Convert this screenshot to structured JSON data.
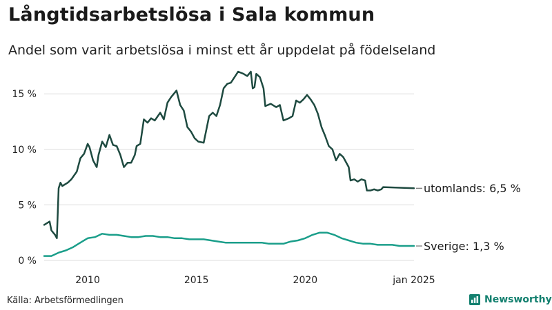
{
  "header": {
    "title": "Långtidsarbetslösa i Sala kommun",
    "subtitle": "Andel som varit arbetslösa i minst ett år uppdelat på födelseland"
  },
  "footer": {
    "source": "Källa: Arbetsförmedlingen",
    "brand": "Newsworthy"
  },
  "colors": {
    "utomlands": "#1e4a40",
    "sverige": "#1a9e8a",
    "grid": "#dcdcdc",
    "brand": "#13806f"
  },
  "icons": {
    "brand": "bar-chart-icon"
  },
  "chart_data": {
    "type": "line",
    "title": "Långtidsarbetslösa i Sala kommun",
    "subtitle": "Andel som varit arbetslösa i minst ett år uppdelat på födelseland",
    "xlabel": "",
    "ylabel": "",
    "x_range": [
      "2008-01",
      "2025-01"
    ],
    "ylim": [
      0,
      17
    ],
    "grid": true,
    "legend": "end-labels",
    "y_ticks": [
      {
        "value": 0,
        "label": "0 %"
      },
      {
        "value": 5,
        "label": "5 %"
      },
      {
        "value": 10,
        "label": "10 %"
      },
      {
        "value": 15,
        "label": "15 %"
      }
    ],
    "x_ticks": [
      {
        "date": "2010-01",
        "label": "2010"
      },
      {
        "date": "2015-01",
        "label": "2015"
      },
      {
        "date": "2020-01",
        "label": "2020"
      },
      {
        "date": "2025-01",
        "label": "jan 2025"
      }
    ],
    "series": [
      {
        "name": "utomlands",
        "end_label": "utomlands: 6,5 %",
        "points": [
          [
            "2008-01",
            3.2
          ],
          [
            "2008-04",
            3.5
          ],
          [
            "2008-05",
            2.7
          ],
          [
            "2008-07",
            2.3
          ],
          [
            "2008-08",
            2.0
          ],
          [
            "2008-09",
            6.5
          ],
          [
            "2008-10",
            7.0
          ],
          [
            "2008-11",
            6.7
          ],
          [
            "2009-02",
            7.0
          ],
          [
            "2009-04",
            7.3
          ],
          [
            "2009-07",
            8.0
          ],
          [
            "2009-09",
            9.2
          ],
          [
            "2009-11",
            9.6
          ],
          [
            "2010-01",
            10.5
          ],
          [
            "2010-02",
            10.2
          ],
          [
            "2010-04",
            9.0
          ],
          [
            "2010-06",
            8.4
          ],
          [
            "2010-07",
            9.5
          ],
          [
            "2010-09",
            10.7
          ],
          [
            "2010-11",
            10.2
          ],
          [
            "2011-01",
            11.3
          ],
          [
            "2011-03",
            10.4
          ],
          [
            "2011-05",
            10.3
          ],
          [
            "2011-07",
            9.5
          ],
          [
            "2011-09",
            8.4
          ],
          [
            "2011-11",
            8.8
          ],
          [
            "2012-01",
            8.8
          ],
          [
            "2012-03",
            9.5
          ],
          [
            "2012-04",
            10.3
          ],
          [
            "2012-06",
            10.5
          ],
          [
            "2012-08",
            12.7
          ],
          [
            "2012-10",
            12.4
          ],
          [
            "2012-12",
            12.8
          ],
          [
            "2013-02",
            12.6
          ],
          [
            "2013-05",
            13.3
          ],
          [
            "2013-07",
            12.7
          ],
          [
            "2013-09",
            14.2
          ],
          [
            "2013-11",
            14.7
          ],
          [
            "2014-02",
            15.3
          ],
          [
            "2014-04",
            14.0
          ],
          [
            "2014-06",
            13.5
          ],
          [
            "2014-08",
            12.0
          ],
          [
            "2014-10",
            11.6
          ],
          [
            "2014-12",
            11.0
          ],
          [
            "2015-02",
            10.7
          ],
          [
            "2015-05",
            10.6
          ],
          [
            "2015-08",
            13.0
          ],
          [
            "2015-10",
            13.3
          ],
          [
            "2015-12",
            13.0
          ],
          [
            "2016-02",
            14.0
          ],
          [
            "2016-04",
            15.5
          ],
          [
            "2016-06",
            15.9
          ],
          [
            "2016-08",
            16.0
          ],
          [
            "2016-10",
            16.5
          ],
          [
            "2016-12",
            17.0
          ],
          [
            "2017-03",
            16.8
          ],
          [
            "2017-05",
            16.6
          ],
          [
            "2017-07",
            17.0
          ],
          [
            "2017-08",
            15.5
          ],
          [
            "2017-09",
            15.6
          ],
          [
            "2017-10",
            16.8
          ],
          [
            "2017-12",
            16.5
          ],
          [
            "2018-02",
            15.5
          ],
          [
            "2018-03",
            13.9
          ],
          [
            "2018-06",
            14.1
          ],
          [
            "2018-09",
            13.8
          ],
          [
            "2018-11",
            14.0
          ],
          [
            "2019-01",
            12.6
          ],
          [
            "2019-04",
            12.8
          ],
          [
            "2019-06",
            13.0
          ],
          [
            "2019-08",
            14.4
          ],
          [
            "2019-10",
            14.2
          ],
          [
            "2019-12",
            14.5
          ],
          [
            "2020-02",
            14.9
          ],
          [
            "2020-04",
            14.5
          ],
          [
            "2020-06",
            14.0
          ],
          [
            "2020-08",
            13.2
          ],
          [
            "2020-10",
            12.0
          ],
          [
            "2020-12",
            11.2
          ],
          [
            "2021-02",
            10.3
          ],
          [
            "2021-04",
            10.0
          ],
          [
            "2021-06",
            9.0
          ],
          [
            "2021-08",
            9.6
          ],
          [
            "2021-10",
            9.3
          ],
          [
            "2022-01",
            8.4
          ],
          [
            "2022-02",
            7.2
          ],
          [
            "2022-04",
            7.3
          ],
          [
            "2022-06",
            7.1
          ],
          [
            "2022-08",
            7.3
          ],
          [
            "2022-10",
            7.2
          ],
          [
            "2022-11",
            6.3
          ],
          [
            "2023-01",
            6.3
          ],
          [
            "2023-03",
            6.4
          ],
          [
            "2023-05",
            6.3
          ],
          [
            "2023-07",
            6.4
          ],
          [
            "2023-08",
            6.6
          ],
          [
            "2025-01",
            6.5
          ]
        ]
      },
      {
        "name": "Sverige",
        "end_label": "Sverige: 1,3 %",
        "points": [
          [
            "2008-01",
            0.4
          ],
          [
            "2008-05",
            0.4
          ],
          [
            "2008-09",
            0.7
          ],
          [
            "2009-01",
            0.9
          ],
          [
            "2009-05",
            1.2
          ],
          [
            "2009-09",
            1.6
          ],
          [
            "2010-01",
            2.0
          ],
          [
            "2010-05",
            2.1
          ],
          [
            "2010-09",
            2.4
          ],
          [
            "2011-01",
            2.3
          ],
          [
            "2011-05",
            2.3
          ],
          [
            "2011-09",
            2.2
          ],
          [
            "2012-01",
            2.1
          ],
          [
            "2012-05",
            2.1
          ],
          [
            "2012-09",
            2.2
          ],
          [
            "2013-01",
            2.2
          ],
          [
            "2013-05",
            2.1
          ],
          [
            "2013-09",
            2.1
          ],
          [
            "2014-01",
            2.0
          ],
          [
            "2014-05",
            2.0
          ],
          [
            "2014-09",
            1.9
          ],
          [
            "2015-01",
            1.9
          ],
          [
            "2015-05",
            1.9
          ],
          [
            "2015-09",
            1.8
          ],
          [
            "2016-01",
            1.7
          ],
          [
            "2016-05",
            1.6
          ],
          [
            "2016-09",
            1.6
          ],
          [
            "2017-01",
            1.6
          ],
          [
            "2017-05",
            1.6
          ],
          [
            "2017-09",
            1.6
          ],
          [
            "2018-01",
            1.6
          ],
          [
            "2018-05",
            1.5
          ],
          [
            "2018-09",
            1.5
          ],
          [
            "2019-01",
            1.5
          ],
          [
            "2019-05",
            1.7
          ],
          [
            "2019-09",
            1.8
          ],
          [
            "2020-01",
            2.0
          ],
          [
            "2020-05",
            2.3
          ],
          [
            "2020-09",
            2.5
          ],
          [
            "2021-01",
            2.5
          ],
          [
            "2021-05",
            2.3
          ],
          [
            "2021-09",
            2.0
          ],
          [
            "2022-01",
            1.8
          ],
          [
            "2022-05",
            1.6
          ],
          [
            "2022-09",
            1.5
          ],
          [
            "2023-01",
            1.5
          ],
          [
            "2023-05",
            1.4
          ],
          [
            "2023-09",
            1.4
          ],
          [
            "2024-01",
            1.4
          ],
          [
            "2024-05",
            1.3
          ],
          [
            "2024-09",
            1.3
          ],
          [
            "2025-01",
            1.3
          ]
        ]
      }
    ]
  }
}
